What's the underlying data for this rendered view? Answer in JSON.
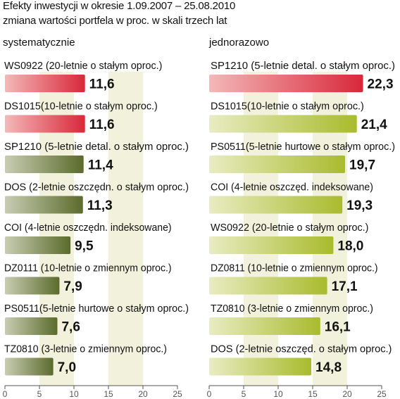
{
  "title": "Efekty inwestycji w okresie 1.09.2007 – 25.08.2010",
  "subtitle": "zmiana wartości portfela w proc. w skali trzech lat",
  "colors": {
    "top_bar": "#e0404e",
    "left_bar": "#6b7a3c",
    "right_bar": "#aebf35",
    "stripe": "#f2f2dc"
  },
  "chart_data": [
    {
      "type": "bar",
      "orientation": "horizontal",
      "title": "systematycznie",
      "categories": [
        "WS0922 (20-letnie o stałym oproc.)",
        "DS1015(10-letnie o stałym oproc.)",
        "SP1210 (5-letnie detal. o stałym oproc.)",
        "DOS (2-letnie oszczędn. o stałym oproc.)",
        "COI (4-letnie oszczędn. indeksowane)",
        "DZ0111 (10-letnie o zmiennym oproc.)",
        "PS0511(5-letnie hurtowe o stałym oproc.)",
        "TZ0810 (3-letnie o zmiennym oproc.)"
      ],
      "values": [
        11.6,
        11.6,
        11.4,
        11.3,
        9.5,
        7.9,
        7.6,
        7.0
      ],
      "value_labels": [
        "11,6",
        "11,6",
        "11,4",
        "11,3",
        "9,5",
        "7,9",
        "7,6",
        "7,0"
      ],
      "highlight": [
        true,
        true,
        false,
        false,
        false,
        false,
        false,
        false
      ],
      "xlim": [
        0,
        25
      ],
      "xticks": [
        "0",
        "5",
        "10",
        "15",
        "20",
        "25"
      ]
    },
    {
      "type": "bar",
      "orientation": "horizontal",
      "title": "jednorazowo",
      "categories": [
        "SP1210 (5-letnie detal. o stałym oproc.)",
        "DS1015(10-letnie o stałym oproc.)",
        "PS0511(5-letnie hurtowe o stałym oproc.)",
        "COI (4-letnie oszczęd. indeksowane)",
        "WS0922 (20-letnie o stałym oproc.)",
        "DZ0811 (10-letnie o zmiennym oproc.)",
        "TZ0810 (3-letnie o zmiennym oproc.)",
        "DOS (2-letnie oszczęd. o stałym oproc.)"
      ],
      "values": [
        22.3,
        21.4,
        19.7,
        19.3,
        18.0,
        17.1,
        16.1,
        14.8
      ],
      "value_labels": [
        "22,3",
        "21,4",
        "19,7",
        "19,3",
        "18,0",
        "17,1",
        "16,1",
        "14,8"
      ],
      "highlight": [
        true,
        false,
        false,
        false,
        false,
        false,
        false,
        false
      ],
      "xlim": [
        0,
        25
      ],
      "xticks": [
        "0",
        "5",
        "10",
        "15",
        "20",
        "25"
      ]
    }
  ]
}
